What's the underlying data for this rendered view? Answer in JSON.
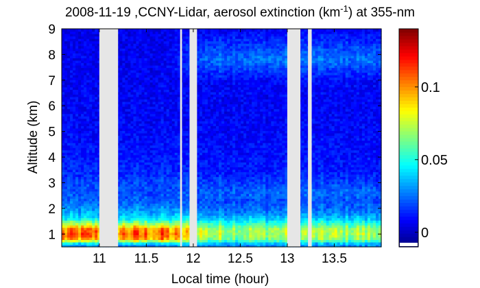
{
  "chart_data": {
    "type": "heatmap",
    "title_main": "2008-11-19 ,CCNY-Lidar, aerosol extinction (km",
    "title_sup": "-1",
    "title_tail": ") at 355-nm",
    "xlabel": "Local time (hour)",
    "ylabel": "Altitude (km)",
    "xlim": [
      10.6,
      14.0
    ],
    "ylim": [
      0.5,
      9.0
    ],
    "x_ticks": [
      11,
      11.5,
      12,
      12.5,
      13,
      13.5
    ],
    "x_tick_labels": [
      "11",
      "11.5",
      "12",
      "12.5",
      "13",
      "13.5"
    ],
    "y_ticks": [
      1,
      2,
      3,
      4,
      5,
      6,
      7,
      8,
      9
    ],
    "y_tick_labels": [
      "1",
      "2",
      "3",
      "4",
      "5",
      "6",
      "7",
      "8",
      "9"
    ],
    "colorbar": {
      "colormap": "jet",
      "range": [
        -0.01,
        0.14
      ],
      "ticks": [
        0,
        0.05,
        0.1
      ],
      "tick_labels": [
        "0",
        "0.05",
        "0.1"
      ]
    },
    "data_gaps_hours": [
      [
        11.0,
        11.2
      ],
      [
        11.86,
        11.88
      ],
      [
        11.96,
        12.04
      ],
      [
        13.0,
        13.14
      ],
      [
        13.22,
        13.26
      ]
    ],
    "gap_color": "#e6e6e6",
    "profile_altitude_km": [
      0.6,
      0.8,
      1.0,
      1.2,
      1.4,
      1.6,
      1.8,
      2.0,
      2.3,
      2.6,
      3.0,
      3.5,
      4.0,
      5.0,
      6.0,
      7.0,
      7.6,
      7.8,
      8.2,
      9.0
    ],
    "profile_extinction_early": [
      0.03,
      0.095,
      0.105,
      0.1,
      0.07,
      0.045,
      0.035,
      0.03,
      0.022,
      0.02,
      0.018,
      0.014,
      0.012,
      0.009,
      0.008,
      0.007,
      0.007,
      0.007,
      0.006,
      0.006
    ],
    "profile_extinction_late": [
      0.03,
      0.065,
      0.072,
      0.07,
      0.055,
      0.038,
      0.03,
      0.024,
      0.02,
      0.024,
      0.018,
      0.012,
      0.011,
      0.009,
      0.008,
      0.009,
      0.022,
      0.026,
      0.02,
      0.007
    ]
  }
}
